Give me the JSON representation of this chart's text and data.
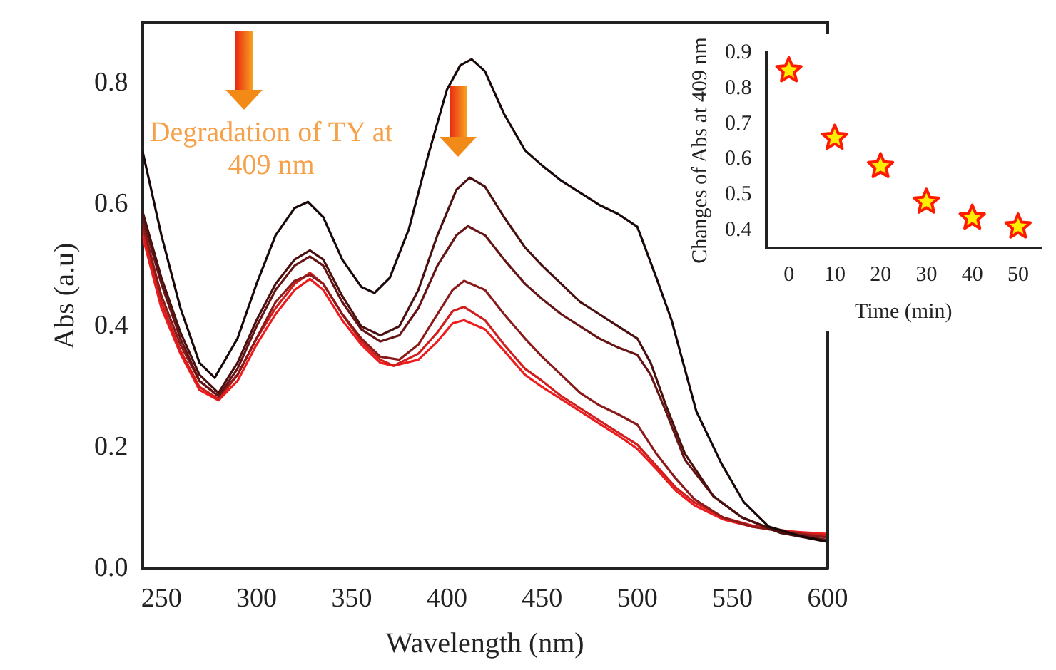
{
  "chart_data": [
    {
      "type": "line",
      "xlabel": "Wavelength (nm)",
      "ylabel": "Abs (a.u)",
      "xlim": [
        240,
        600
      ],
      "ylim": [
        0,
        0.9
      ],
      "xticks": [
        250,
        300,
        350,
        400,
        450,
        500,
        550,
        600
      ],
      "yticks": [
        {
          "value": 0,
          "label": "0.0"
        },
        0.2,
        0.4,
        0.6,
        0.8
      ],
      "grid": false,
      "legend": false,
      "marker": "none",
      "line_style": "solid",
      "annotations": [
        "Degradation of TY at 409 nm"
      ],
      "series": [
        {
          "color": "#1a0808",
          "x": [
            240,
            250,
            260,
            270,
            278,
            290,
            300,
            310,
            320,
            327,
            335,
            345,
            355,
            362,
            370,
            380,
            390,
            400,
            407,
            413,
            420,
            430,
            441,
            450,
            460,
            470,
            480,
            490,
            500,
            510,
            518,
            531,
            544,
            556,
            569,
            585,
            600
          ],
          "values": [
            0.69,
            0.55,
            0.43,
            0.34,
            0.315,
            0.38,
            0.47,
            0.55,
            0.595,
            0.605,
            0.58,
            0.51,
            0.465,
            0.455,
            0.48,
            0.56,
            0.68,
            0.79,
            0.83,
            0.84,
            0.82,
            0.75,
            0.69,
            0.665,
            0.64,
            0.62,
            0.6,
            0.585,
            0.564,
            0.48,
            0.41,
            0.26,
            0.175,
            0.11,
            0.07,
            0.055,
            0.045
          ]
        },
        {
          "color": "#4a1010",
          "x": [
            240,
            250,
            260,
            270,
            280,
            290,
            300,
            310,
            320,
            328,
            335,
            345,
            355,
            365,
            375,
            385,
            395,
            405,
            412,
            420,
            430,
            441,
            450,
            460,
            470,
            480,
            490,
            500,
            507,
            515,
            525,
            540,
            555,
            575,
            600
          ],
          "values": [
            0.59,
            0.48,
            0.39,
            0.32,
            0.29,
            0.34,
            0.41,
            0.47,
            0.51,
            0.525,
            0.51,
            0.45,
            0.4,
            0.385,
            0.4,
            0.46,
            0.55,
            0.625,
            0.645,
            0.63,
            0.58,
            0.53,
            0.5,
            0.47,
            0.44,
            0.42,
            0.4,
            0.38,
            0.34,
            0.27,
            0.19,
            0.12,
            0.085,
            0.06,
            0.045
          ]
        },
        {
          "color": "#661414",
          "x": [
            240,
            250,
            260,
            270,
            280,
            290,
            300,
            310,
            320,
            328,
            335,
            345,
            355,
            365,
            375,
            385,
            395,
            405,
            411,
            420,
            430,
            441,
            450,
            460,
            470,
            480,
            490,
            500,
            507,
            515,
            525,
            540,
            555,
            575,
            600
          ],
          "values": [
            0.58,
            0.47,
            0.38,
            0.31,
            0.285,
            0.33,
            0.4,
            0.46,
            0.5,
            0.515,
            0.5,
            0.44,
            0.395,
            0.375,
            0.385,
            0.43,
            0.5,
            0.55,
            0.565,
            0.55,
            0.51,
            0.47,
            0.445,
            0.42,
            0.4,
            0.38,
            0.365,
            0.353,
            0.32,
            0.26,
            0.18,
            0.12,
            0.085,
            0.06,
            0.048
          ]
        },
        {
          "color": "#8b1a1a",
          "x": [
            240,
            250,
            260,
            270,
            280,
            290,
            300,
            310,
            320,
            328,
            335,
            345,
            355,
            365,
            375,
            385,
            395,
            403,
            409,
            420,
            430,
            441,
            450,
            460,
            470,
            480,
            490,
            500,
            510,
            520,
            530,
            545,
            560,
            580,
            600
          ],
          "values": [
            0.57,
            0.45,
            0.37,
            0.31,
            0.285,
            0.32,
            0.38,
            0.44,
            0.475,
            0.485,
            0.47,
            0.42,
            0.38,
            0.35,
            0.345,
            0.37,
            0.42,
            0.46,
            0.475,
            0.46,
            0.42,
            0.38,
            0.35,
            0.32,
            0.29,
            0.27,
            0.255,
            0.238,
            0.19,
            0.15,
            0.115,
            0.085,
            0.07,
            0.06,
            0.052
          ]
        },
        {
          "color": "#d01e1e",
          "x": [
            240,
            250,
            260,
            270,
            280,
            290,
            300,
            310,
            320,
            328,
            335,
            345,
            355,
            365,
            372,
            385,
            395,
            403,
            409,
            420,
            430,
            441,
            450,
            460,
            470,
            480,
            490,
            500,
            510,
            520,
            530,
            545,
            560,
            580,
            600
          ],
          "values": [
            0.56,
            0.44,
            0.36,
            0.3,
            0.28,
            0.32,
            0.38,
            0.43,
            0.47,
            0.488,
            0.47,
            0.42,
            0.375,
            0.345,
            0.335,
            0.355,
            0.39,
            0.425,
            0.432,
            0.41,
            0.37,
            0.33,
            0.31,
            0.285,
            0.265,
            0.245,
            0.225,
            0.205,
            0.17,
            0.135,
            0.11,
            0.085,
            0.072,
            0.062,
            0.055
          ]
        },
        {
          "color": "#ee1c1c",
          "x": [
            240,
            250,
            260,
            270,
            280,
            290,
            300,
            310,
            320,
            328,
            335,
            345,
            355,
            365,
            372,
            385,
            395,
            403,
            409,
            420,
            430,
            441,
            450,
            460,
            470,
            480,
            490,
            500,
            510,
            520,
            530,
            545,
            560,
            580,
            600
          ],
          "values": [
            0.55,
            0.43,
            0.355,
            0.295,
            0.278,
            0.31,
            0.37,
            0.42,
            0.46,
            0.478,
            0.46,
            0.41,
            0.37,
            0.34,
            0.335,
            0.345,
            0.375,
            0.405,
            0.41,
            0.395,
            0.36,
            0.32,
            0.3,
            0.28,
            0.26,
            0.24,
            0.22,
            0.198,
            0.165,
            0.13,
            0.105,
            0.082,
            0.07,
            0.062,
            0.058
          ]
        }
      ]
    },
    {
      "type": "scatter",
      "xlabel": "Time (min)",
      "ylabel": "Changes of Abs at 409 nm",
      "xlim": [
        -5,
        55
      ],
      "ylim": [
        0.35,
        0.9
      ],
      "xticks": [
        0,
        10,
        20,
        30,
        40,
        50
      ],
      "yticks": [
        0.4,
        0.5,
        0.6,
        0.7,
        0.8,
        0.9
      ],
      "grid": false,
      "legend": false,
      "marker": "star",
      "series": [
        {
          "color": "#ff1a00",
          "x": [
            0,
            10,
            20,
            30,
            40,
            50
          ],
          "values": [
            0.85,
            0.66,
            0.58,
            0.48,
            0.435,
            0.41
          ]
        }
      ]
    }
  ]
}
